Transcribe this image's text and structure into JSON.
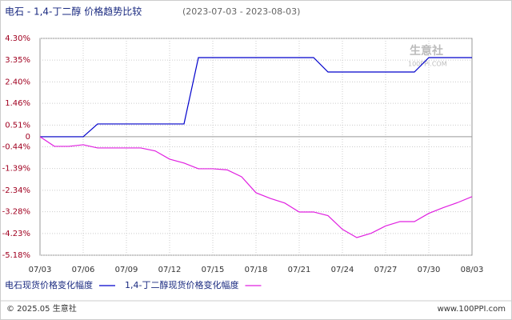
{
  "chart_data": {
    "type": "line",
    "title": "电石 - 1,4-丁二醇 价格趋势比较",
    "subtitle": "(2023-07-03 - 2023-08-03)",
    "categories": [
      "07/03",
      null,
      null,
      "07/06",
      null,
      null,
      "07/09",
      null,
      null,
      "07/12",
      null,
      null,
      "07/15",
      null,
      null,
      "07/18",
      null,
      null,
      "07/21",
      null,
      null,
      "07/24",
      null,
      null,
      "07/27",
      null,
      null,
      "07/30",
      null,
      null,
      "08/03"
    ],
    "series": [
      {
        "name": "电石现货价格变化幅度",
        "color": "#0000cc",
        "values": [
          0,
          0,
          0,
          0,
          0.56,
          0.56,
          0.56,
          0.56,
          0.56,
          0.56,
          0.56,
          3.46,
          3.46,
          3.46,
          3.46,
          3.46,
          3.46,
          3.46,
          3.46,
          3.46,
          2.83,
          2.83,
          2.83,
          2.83,
          2.83,
          2.83,
          2.83,
          3.46,
          3.46,
          3.46,
          3.46
        ]
      },
      {
        "name": "1,4-丁二醇现货价格变化幅度",
        "color": "#e020e0",
        "values": [
          0,
          -0.42,
          -0.42,
          -0.35,
          -0.49,
          -0.49,
          -0.49,
          -0.49,
          -0.62,
          -0.98,
          -1.15,
          -1.4,
          -1.4,
          -1.45,
          -1.75,
          -2.45,
          -2.7,
          -2.9,
          -3.29,
          -3.29,
          -3.45,
          -4.05,
          -4.41,
          -4.22,
          -3.9,
          -3.71,
          -3.71,
          -3.35,
          -3.1,
          -2.88,
          -2.62
        ]
      }
    ],
    "ylim": [
      -5.18,
      4.3
    ],
    "yticks": [
      {
        "value": 4.3,
        "label": "4.30%"
      },
      {
        "value": 3.35,
        "label": "3.35%"
      },
      {
        "value": 2.4,
        "label": "2.40%"
      },
      {
        "value": 1.46,
        "label": "1.46%"
      },
      {
        "value": 0.51,
        "label": "0.51%"
      },
      0,
      {
        "value": -0.44,
        "label": "-0.44%"
      },
      {
        "value": -1.39,
        "label": "-1.39%"
      },
      {
        "value": -2.34,
        "label": "-2.34%"
      },
      {
        "value": -3.28,
        "label": "-3.28%"
      },
      {
        "value": -4.23,
        "label": "-4.23%"
      },
      {
        "value": -5.18,
        "label": "-5.18%"
      }
    ],
    "grid": true,
    "watermark": {
      "name": "生意社",
      "url": "100PPI.COM"
    },
    "footer": {
      "copyright": "© 2025.05 生意社",
      "site": "www.100PPI.com"
    }
  }
}
